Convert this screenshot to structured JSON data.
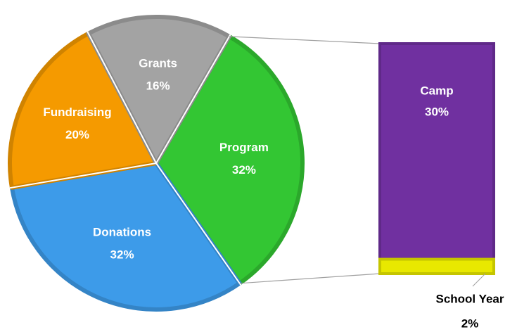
{
  "chart_data": {
    "type": "pie-of-bar",
    "pie": {
      "categories": [
        "Program",
        "Donations",
        "Fundraising",
        "Grants"
      ],
      "values": [
        32,
        32,
        20,
        16
      ],
      "value_labels": [
        "32%",
        "32%",
        "20%",
        "16%"
      ],
      "colors": [
        "#33c633",
        "#3d9be9",
        "#f59a00",
        "#a3a3a3"
      ]
    },
    "bar": {
      "categories": [
        "Camp",
        "School Year"
      ],
      "values": [
        30,
        2
      ],
      "value_labels": [
        "30%",
        "2%"
      ],
      "colors": [
        "#7030a0",
        "#e8e800"
      ]
    }
  }
}
